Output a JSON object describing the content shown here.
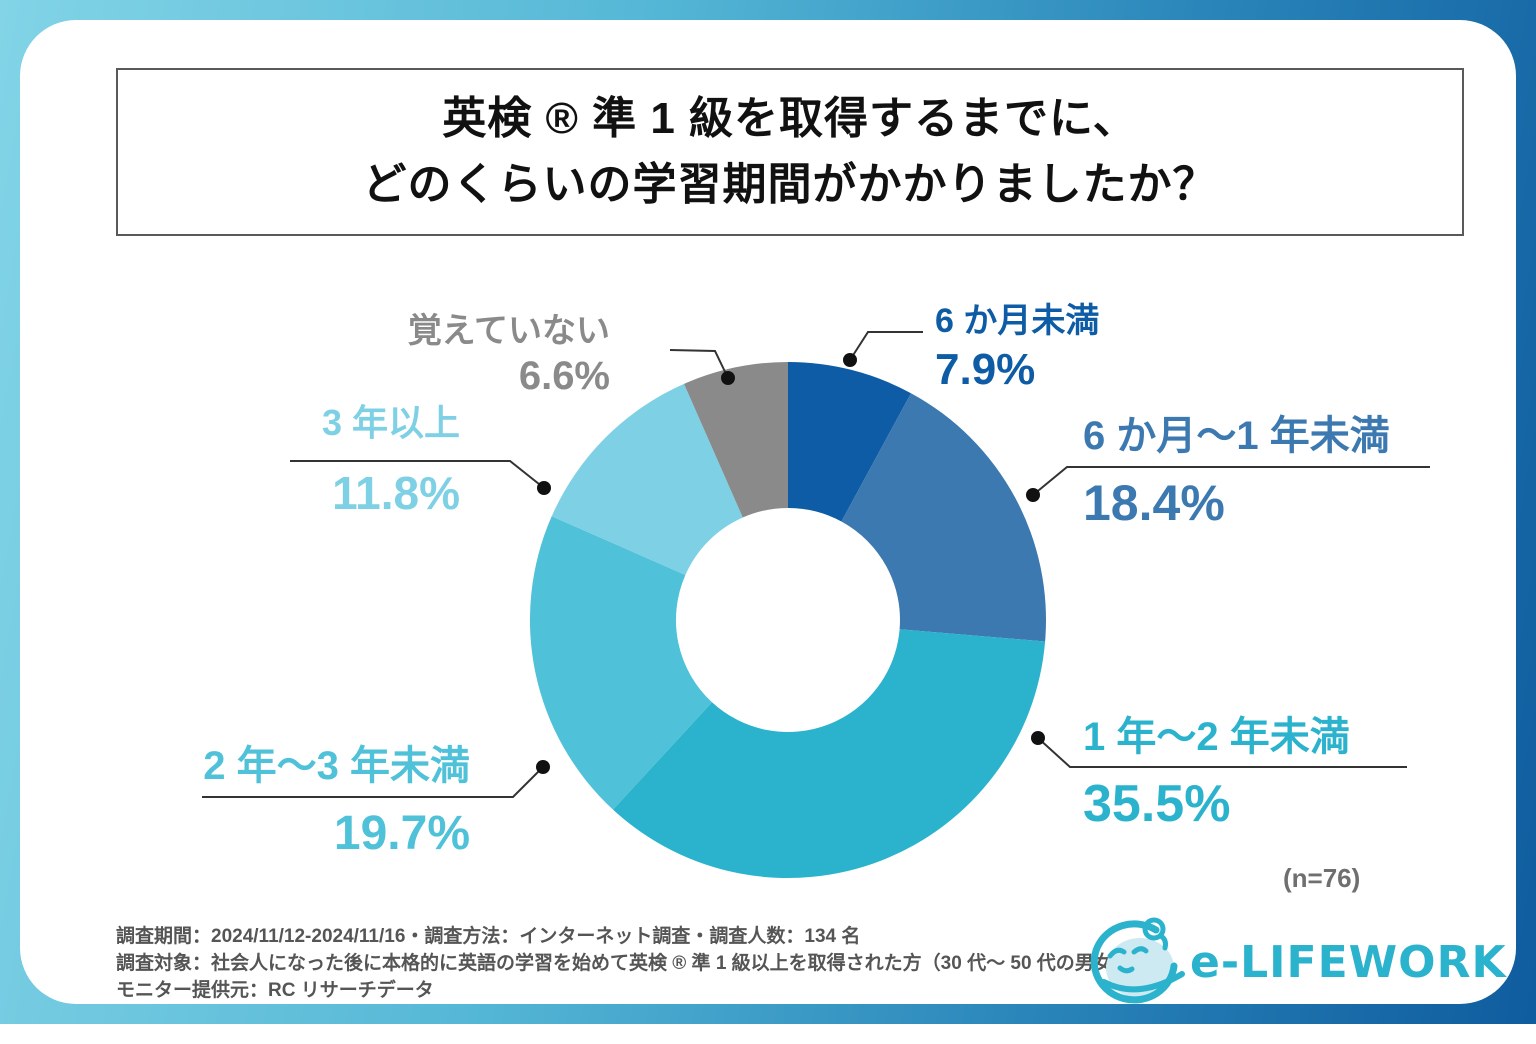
{
  "title": {
    "line1": "英検 ® 準 1 級を取得するまでに、",
    "line2": "どのくらいの学習期間がかかりましたか？"
  },
  "chart_data": {
    "type": "pie",
    "donut": true,
    "start_angle_deg": 0,
    "direction": "clockwise",
    "title": "英検®準1級を取得するまでに、どのくらいの学習期間がかかりましたか？",
    "categories": [
      "6 か月未満",
      "6 か月～1 年未満",
      "1 年～2 年未満",
      "2 年～3 年未満",
      "3 年以上",
      "覚えていない"
    ],
    "values": [
      7.9,
      18.4,
      35.5,
      19.7,
      11.8,
      6.6
    ],
    "value_labels": [
      "7.9%",
      "18.4%",
      "35.5%",
      "19.7%",
      "11.8%",
      "6.6%"
    ],
    "colors": [
      "#0d5ca5",
      "#3c79b0",
      "#2bb3ce",
      "#4fc1d8",
      "#7ed0e4",
      "#8a8a8a"
    ],
    "sample_size_label": "(n=76)"
  },
  "footer": {
    "line1": "調査期間：2024/11/12-2024/11/16・調査方法：インターネット調査・調査人数：134 名",
    "line2": "調査対象：社会人になった後に本格的に英語の学習を始めて英検 ® 準 1 級以上を取得された方（30 代～ 50 代の男女）",
    "line3": "モニター提供元：RC リサーチデータ"
  },
  "logo": {
    "text": "e-LIFEWORK"
  },
  "colors": {
    "frame_gradient_start": "#82d4e6",
    "frame_gradient_end": "#0f5c9e",
    "title_border": "#58595b",
    "leader_line": "#333333",
    "footer_text": "#555555",
    "logo_teal": "#2bb3ce"
  }
}
